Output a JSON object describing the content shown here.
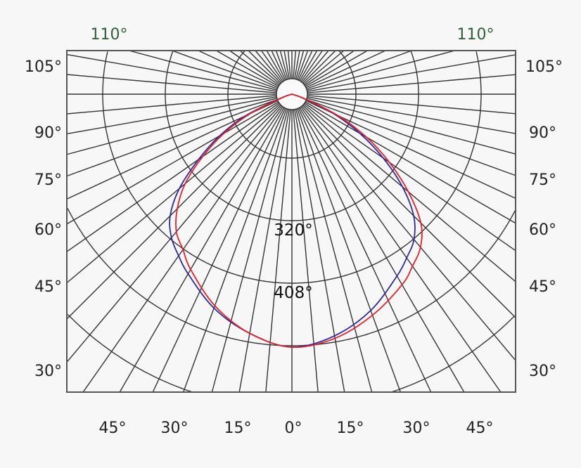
{
  "chart_data": {
    "type": "polar-line",
    "title": "",
    "angle_unit": "degrees",
    "grid": true,
    "top_labels": [
      "110°",
      "110°"
    ],
    "left_labels": [
      "105°",
      "90°",
      "75°",
      "60°",
      "45°",
      "30°"
    ],
    "right_labels": [
      "105°",
      "90°",
      "75°",
      "60°",
      "45°",
      "30°"
    ],
    "bottom_labels": [
      "45°",
      "30°",
      "15°",
      "0°",
      "15°",
      "30°",
      "45°"
    ],
    "ring_labels": [
      "320°",
      "408°"
    ],
    "radial_scale": "relative intensity (peak = 1)",
    "series": [
      {
        "color": "#2b2ba0",
        "angles": [
          -70,
          -65,
          -60,
          -55,
          -50,
          -45,
          -40,
          -35,
          -30,
          -20,
          -10,
          0,
          10,
          20,
          30,
          35,
          40,
          45,
          50,
          55,
          60,
          65,
          70
        ],
        "values": [
          0.05,
          0.2,
          0.33,
          0.45,
          0.58,
          0.68,
          0.74,
          0.78,
          0.82,
          0.9,
          0.96,
          1,
          0.97,
          0.91,
          0.83,
          0.79,
          0.75,
          0.68,
          0.57,
          0.44,
          0.31,
          0.18,
          0.05
        ]
      },
      {
        "color": "#e8202a",
        "angles": [
          -70,
          -65,
          -60,
          -55,
          -50,
          -45,
          -40,
          -35,
          -30,
          -20,
          -10,
          0,
          10,
          20,
          30,
          35,
          40,
          45,
          50,
          55,
          60,
          65,
          70
        ],
        "values": [
          0.04,
          0.18,
          0.31,
          0.43,
          0.55,
          0.64,
          0.71,
          0.75,
          0.8,
          0.89,
          0.96,
          1,
          0.98,
          0.93,
          0.87,
          0.83,
          0.79,
          0.72,
          0.6,
          0.47,
          0.34,
          0.2,
          0.06
        ]
      }
    ]
  }
}
